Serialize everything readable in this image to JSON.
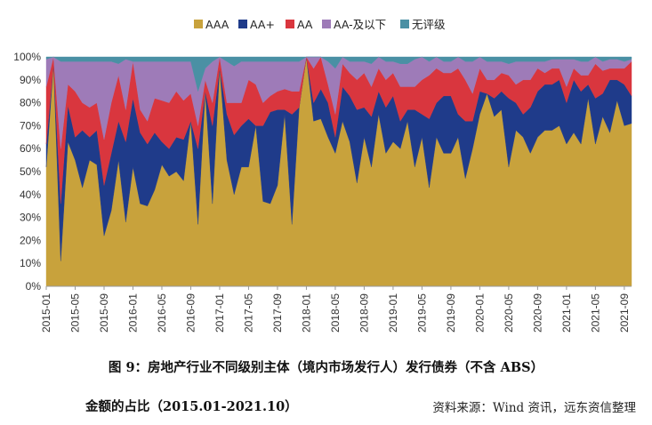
{
  "chart_data": {
    "type": "area",
    "stacked": true,
    "percent": true,
    "x": [
      "2015-01",
      "2015-02",
      "2015-03",
      "2015-04",
      "2015-05",
      "2015-06",
      "2015-07",
      "2015-08",
      "2015-09",
      "2015-10",
      "2015-11",
      "2015-12",
      "2016-01",
      "2016-02",
      "2016-03",
      "2016-04",
      "2016-05",
      "2016-06",
      "2016-07",
      "2016-08",
      "2016-09",
      "2016-10",
      "2016-11",
      "2016-12",
      "2017-01",
      "2017-02",
      "2017-03",
      "2017-04",
      "2017-05",
      "2017-06",
      "2017-07",
      "2017-08",
      "2017-09",
      "2017-10",
      "2017-11",
      "2017-12",
      "2018-01",
      "2018-02",
      "2018-03",
      "2018-04",
      "2018-05",
      "2018-06",
      "2018-07",
      "2018-08",
      "2018-09",
      "2018-10",
      "2018-11",
      "2018-12",
      "2019-01",
      "2019-02",
      "2019-03",
      "2019-04",
      "2019-05",
      "2019-06",
      "2019-07",
      "2019-08",
      "2019-09",
      "2019-10",
      "2019-11",
      "2019-12",
      "2020-01",
      "2020-02",
      "2020-03",
      "2020-04",
      "2020-05",
      "2020-06",
      "2020-07",
      "2020-08",
      "2020-09",
      "2020-10",
      "2020-11",
      "2020-12",
      "2021-01",
      "2021-02",
      "2021-03",
      "2021-04",
      "2021-05",
      "2021-06",
      "2021-07",
      "2021-08",
      "2021-09",
      "2021-10"
    ],
    "xtick_labels": [
      "2015-01",
      "2015-05",
      "2015-09",
      "2016-01",
      "2016-05",
      "2016-09",
      "2017-01",
      "2017-05",
      "2017-09",
      "2018-01",
      "2018-05",
      "2018-09",
      "2019-01",
      "2019-05",
      "2019-09",
      "2020-01",
      "2020-05",
      "2020-09",
      "2021-01",
      "2021-05",
      "2021-09"
    ],
    "series": [
      {
        "name": "AAA",
        "color": "#C8A23C",
        "values": [
          52,
          97,
          11,
          63,
          55,
          43,
          55,
          53,
          22,
          33,
          55,
          28,
          52,
          36,
          35,
          42,
          53,
          48,
          50,
          46,
          72,
          27,
          85,
          36,
          95,
          55,
          40,
          52,
          52,
          70,
          37,
          36,
          44,
          75,
          27,
          78,
          100,
          72,
          73,
          65,
          58,
          72,
          63,
          45,
          65,
          52,
          75,
          58,
          63,
          60,
          72,
          52,
          65,
          43,
          65,
          58,
          58,
          65,
          47,
          60,
          75,
          84,
          74,
          77,
          52,
          68,
          65,
          58,
          65,
          68,
          68,
          70,
          62,
          67,
          62,
          82,
          62,
          74,
          67,
          81,
          70,
          71
        ]
      },
      {
        "name": "AA+",
        "color": "#1F3B8A",
        "values": [
          10,
          0,
          25,
          16,
          10,
          25,
          10,
          15,
          22,
          25,
          17,
          35,
          30,
          31,
          27,
          25,
          10,
          12,
          15,
          18,
          0,
          33,
          0,
          34,
          0,
          20,
          26,
          18,
          21,
          0,
          33,
          40,
          33,
          2,
          48,
          0,
          0,
          8,
          13,
          15,
          7,
          15,
          20,
          32,
          13,
          22,
          10,
          20,
          20,
          12,
          5,
          25,
          10,
          30,
          15,
          25,
          25,
          10,
          25,
          12,
          10,
          0,
          8,
          8,
          30,
          12,
          10,
          20,
          20,
          20,
          20,
          20,
          18,
          23,
          23,
          6,
          20,
          10,
          23,
          9,
          18,
          12
        ]
      },
      {
        "name": "AA",
        "color": "#D9363E",
        "values": [
          25,
          3,
          24,
          9,
          20,
          12,
          13,
          12,
          20,
          22,
          20,
          14,
          16,
          10,
          10,
          15,
          18,
          20,
          20,
          17,
          12,
          10,
          5,
          10,
          5,
          5,
          14,
          10,
          17,
          18,
          10,
          7,
          8,
          9,
          10,
          7,
          0,
          15,
          14,
          8,
          10,
          10,
          10,
          13,
          15,
          13,
          10,
          12,
          10,
          15,
          10,
          10,
          15,
          19,
          15,
          10,
          10,
          20,
          18,
          12,
          10,
          6,
          8,
          8,
          10,
          8,
          15,
          12,
          10,
          5,
          7,
          5,
          7,
          5,
          7,
          4,
          15,
          10,
          5,
          5,
          7,
          15
        ]
      },
      {
        "name": "AA-及以下",
        "color": "#9E7BB8",
        "values": [
          12,
          0,
          38,
          10,
          13,
          18,
          20,
          18,
          34,
          18,
          5,
          22,
          0,
          21,
          26,
          16,
          17,
          18,
          13,
          17,
          14,
          15,
          5,
          18,
          0,
          18,
          16,
          18,
          8,
          10,
          18,
          15,
          13,
          12,
          13,
          13,
          0,
          5,
          0,
          10,
          20,
          3,
          5,
          8,
          5,
          10,
          5,
          8,
          5,
          10,
          10,
          12,
          10,
          6,
          5,
          5,
          5,
          5,
          8,
          14,
          5,
          8,
          8,
          5,
          5,
          10,
          8,
          8,
          3,
          5,
          4,
          4,
          12,
          4,
          6,
          6,
          3,
          4,
          4,
          4,
          3,
          1
        ]
      },
      {
        "name": "无评级",
        "color": "#4A90A4",
        "values": [
          1,
          0,
          2,
          2,
          2,
          2,
          2,
          2,
          2,
          2,
          3,
          1,
          2,
          2,
          2,
          2,
          2,
          2,
          2,
          2,
          2,
          15,
          5,
          2,
          0,
          2,
          4,
          2,
          2,
          2,
          2,
          2,
          2,
          2,
          2,
          2,
          0,
          0,
          0,
          2,
          5,
          0,
          2,
          2,
          2,
          3,
          0,
          2,
          2,
          3,
          3,
          1,
          0,
          2,
          0,
          2,
          2,
          0,
          2,
          2,
          0,
          2,
          2,
          2,
          3,
          2,
          2,
          2,
          2,
          2,
          1,
          1,
          1,
          1,
          2,
          2,
          0,
          2,
          1,
          1,
          2,
          1
        ]
      }
    ],
    "ylim": [
      0,
      100
    ],
    "yticks": [
      "0%",
      "10%",
      "20%",
      "30%",
      "40%",
      "50%",
      "60%",
      "70%",
      "80%",
      "90%",
      "100%"
    ],
    "legend_position": "top",
    "grid": false
  },
  "figure": {
    "caption_line1": "图 9：房地产行业不同级别主体（境内市场发行人）发行债券（不含 ABS）",
    "caption_line2": "金额的占比（2015.01-2021.10）",
    "source": "资料来源：Wind 资讯，远东资信整理"
  }
}
